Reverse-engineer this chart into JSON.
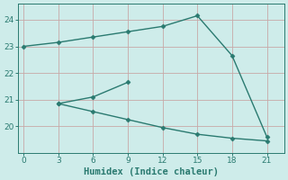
{
  "line1_x": [
    0,
    3,
    6,
    9,
    12,
    15,
    18,
    21
  ],
  "line1_y": [
    23.0,
    23.15,
    23.35,
    23.55,
    23.75,
    24.15,
    22.65,
    19.6
  ],
  "line2_x": [
    3,
    6,
    9
  ],
  "line2_y": [
    20.85,
    21.1,
    21.65
  ],
  "line3_x": [
    3,
    6,
    9,
    12,
    15,
    18,
    21
  ],
  "line3_y": [
    20.85,
    20.55,
    20.25,
    19.95,
    19.7,
    19.55,
    19.45
  ],
  "line_color": "#2a7a70",
  "marker": "D",
  "markersize": 2.5,
  "xlabel": "Humidex (Indice chaleur)",
  "xlim": [
    -0.5,
    22.5
  ],
  "ylim": [
    19.0,
    24.6
  ],
  "xticks": [
    0,
    3,
    6,
    9,
    12,
    15,
    18,
    21
  ],
  "yticks": [
    20,
    21,
    22,
    23,
    24
  ],
  "bg_color": "#ceecea",
  "grid_color": "#c8a8a8",
  "tick_fontsize": 6.5,
  "xlabel_fontsize": 7.5,
  "linewidth": 1.0
}
